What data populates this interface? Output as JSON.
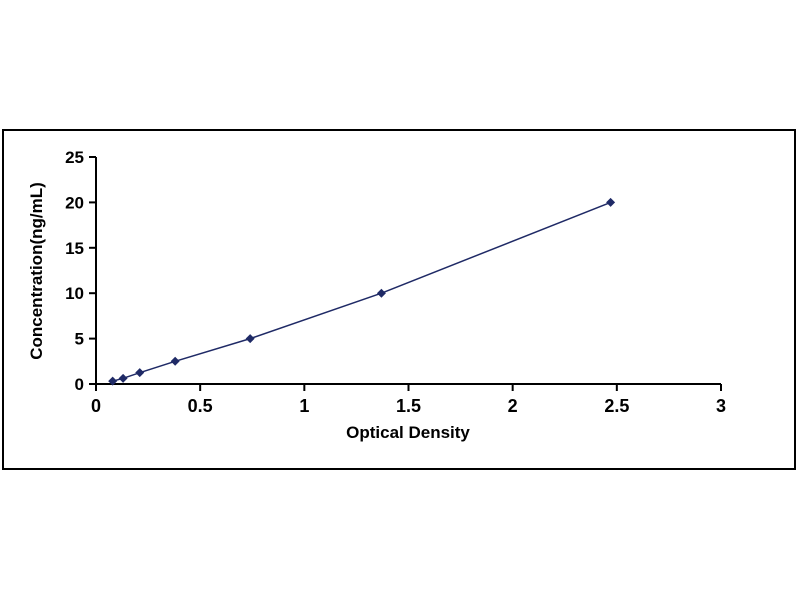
{
  "chart_data": {
    "type": "line",
    "title": "",
    "xlabel": "Optical Density",
    "ylabel": "Concentration(ng/mL)",
    "x": [
      0.08,
      0.13,
      0.21,
      0.38,
      0.74,
      1.37,
      2.47
    ],
    "y": [
      0.312,
      0.625,
      1.25,
      2.5,
      5,
      10,
      20
    ],
    "xlim": [
      0,
      3
    ],
    "ylim": [
      0,
      25
    ],
    "x_ticks": [
      0,
      0.5,
      1,
      1.5,
      2,
      2.5,
      3
    ],
    "x_tick_labels": [
      "0",
      "0.5",
      "1",
      "1.5",
      "2",
      "2.5",
      "3"
    ],
    "y_ticks": [
      0,
      5,
      10,
      15,
      20,
      25
    ],
    "y_tick_labels": [
      "0",
      "5",
      "10",
      "15",
      "20",
      "25"
    ],
    "line_color": "#1F2A66",
    "axis_color": "#000000",
    "marker": "diamond",
    "grid": false,
    "legend": "none"
  }
}
